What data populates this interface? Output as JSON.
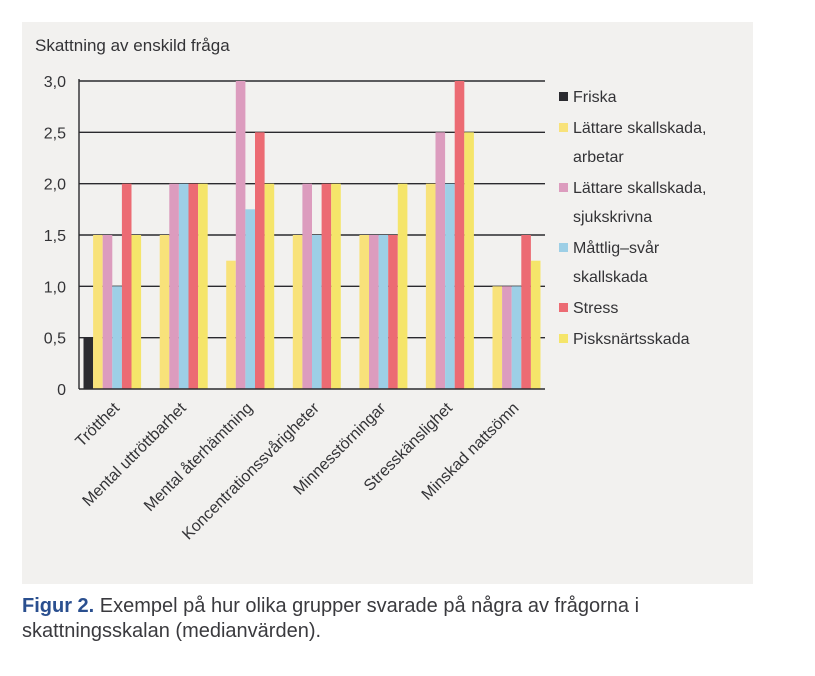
{
  "caption": {
    "label": "Figur 2.",
    "text": "Exempel på hur olika grupper svarade på några av frågorna i skattningsskalan (medianvärden)."
  },
  "chart_data": {
    "type": "bar",
    "title": "Skattning av enskild fråga",
    "xlabel": "",
    "ylabel": "",
    "ylim": [
      0,
      3
    ],
    "ytick_labels": [
      "0",
      "0,5",
      "1,0",
      "1,5",
      "2,0",
      "2,5",
      "3,0"
    ],
    "grid": "horizontal",
    "legend_position": "right",
    "categories": [
      "Trötthet",
      "Mental uttröttbarhet",
      "Mental återhämtning",
      "Koncentrationssvårigheter",
      "Minnesstörningar",
      "Stresskänslighet",
      "Minskad nattsömn"
    ],
    "series": [
      {
        "name": "Friska",
        "legend_lines": [
          "Friska"
        ],
        "color": "#2b2b30",
        "values": [
          0.5,
          0,
          0,
          0,
          0,
          0,
          0
        ]
      },
      {
        "name": "Lättare skallskada, arbetar",
        "legend_lines": [
          "Lättare skallskada,",
          "arbetar"
        ],
        "color": "#f8e27a",
        "values": [
          1.5,
          1.5,
          1.25,
          1.5,
          1.5,
          2.0,
          1.0
        ]
      },
      {
        "name": "Lättare skallskada, sjukskrivna",
        "legend_lines": [
          "Lättare skallskada,",
          "sjukskrivna"
        ],
        "color": "#dc9cbe",
        "values": [
          1.5,
          2.0,
          3.0,
          2.0,
          1.5,
          2.5,
          1.0
        ]
      },
      {
        "name": "Måttlig–svår skallskada",
        "legend_lines": [
          "Måttlig–svår",
          "skallskada"
        ],
        "color": "#9dcfe6",
        "values": [
          1.0,
          2.0,
          1.75,
          1.5,
          1.5,
          2.0,
          1.0
        ]
      },
      {
        "name": "Stress",
        "legend_lines": [
          "Stress"
        ],
        "color": "#ec6b73",
        "values": [
          2.0,
          2.0,
          2.5,
          2.0,
          1.5,
          3.0,
          1.5
        ]
      },
      {
        "name": "Pisksnärtsskada",
        "legend_lines": [
          "Pisksnärtsskada"
        ],
        "color": "#f5e56a",
        "values": [
          1.5,
          2.0,
          2.0,
          2.0,
          2.0,
          2.5,
          1.25
        ]
      }
    ]
  }
}
